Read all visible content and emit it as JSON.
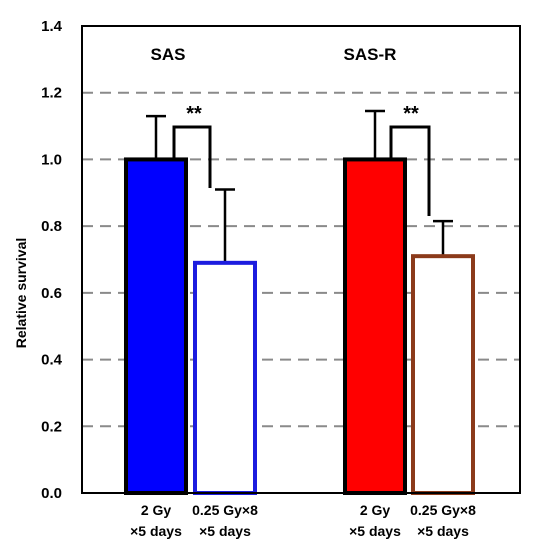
{
  "chart_data": {
    "type": "bar",
    "ylabel": "Relative survival",
    "ylim": [
      0,
      1.4
    ],
    "yticks": [
      "0.0",
      "0.2",
      "0.4",
      "0.6",
      "0.8",
      "1.0",
      "1.2",
      "1.4"
    ],
    "grid": "horizontal-dashed",
    "groups": [
      {
        "name": "SAS",
        "bars": [
          {
            "category": [
              "2 Gy",
              "×5 days"
            ],
            "value": 1.0,
            "error": 0.13,
            "fill": "#0000ff",
            "stroke": "#000000"
          },
          {
            "category": [
              "0.25 Gy×8",
              "×5 days"
            ],
            "value": 0.69,
            "error": 0.22,
            "fill": "#ffffff",
            "stroke": "#1c1cdf"
          }
        ],
        "significance": "**"
      },
      {
        "name": "SAS-R",
        "bars": [
          {
            "category": [
              "2 Gy",
              "×5 days"
            ],
            "value": 1.0,
            "error": 0.145,
            "fill": "#ff0000",
            "stroke": "#000000"
          },
          {
            "category": [
              "0.25 Gy×8",
              "×5 days"
            ],
            "value": 0.71,
            "error": 0.105,
            "fill": "#ffffff",
            "stroke": "#8b3a1a"
          }
        ],
        "significance": "**"
      }
    ]
  }
}
